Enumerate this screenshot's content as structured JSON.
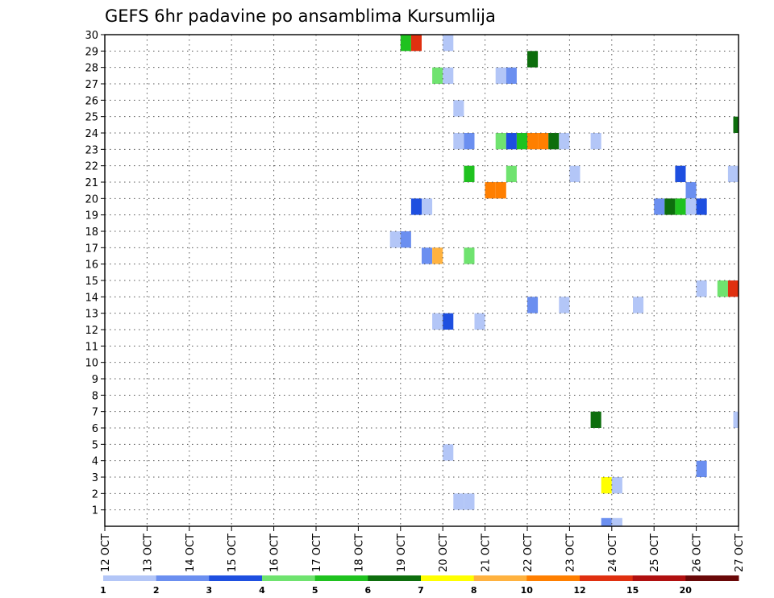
{
  "chart_data": {
    "type": "heatmap",
    "title": "GEFS 6hr padavine po ansamblima Kursumlija",
    "xlabel": "",
    "ylabel": "",
    "x_ticks": [
      "12 OCT",
      "13 OCT",
      "14 OCT",
      "15 OCT",
      "16 OCT",
      "17 OCT",
      "18 OCT",
      "19 OCT",
      "20 OCT",
      "21 OCT",
      "22 OCT",
      "23 OCT",
      "24 OCT",
      "25 OCT",
      "26 OCT",
      "27 OCT"
    ],
    "y_ticks": [
      "1",
      "2",
      "3",
      "4",
      "5",
      "6",
      "7",
      "8",
      "9",
      "10",
      "11",
      "12",
      "13",
      "14",
      "15",
      "16",
      "17",
      "18",
      "19",
      "20",
      "21",
      "22",
      "23",
      "24",
      "25",
      "26",
      "27",
      "28",
      "29",
      "30"
    ],
    "xlim": [
      0,
      60
    ],
    "ylim": [
      0,
      30
    ],
    "grid": true,
    "cell_units": "x = 6-hour step from 12 OCT 00Z, y = ensemble member (cells span y-1..y)",
    "colorbar": {
      "labels": [
        "1",
        "2",
        "3",
        "4",
        "5",
        "6",
        "7",
        "8",
        "10",
        "12",
        "15",
        "20"
      ],
      "colors": [
        "#b3c6f7",
        "#6b8ff0",
        "#1e4fe0",
        "#6fe36f",
        "#1fc21f",
        "#0d6e0d",
        "#ffff00",
        "#ffb23f",
        "#ff7f00",
        "#e03010",
        "#b01010",
        "#6a0808"
      ]
    },
    "cells": [
      {
        "x": 28.5,
        "y": 30,
        "level": 4
      },
      {
        "x": 29.5,
        "y": 30,
        "level": 9
      },
      {
        "x": 32.5,
        "y": 30,
        "level": 0
      },
      {
        "x": 40.5,
        "y": 29,
        "level": 5
      },
      {
        "x": 31.5,
        "y": 28,
        "level": 3
      },
      {
        "x": 32.5,
        "y": 28,
        "level": 0
      },
      {
        "x": 37.5,
        "y": 28,
        "level": 0
      },
      {
        "x": 38.5,
        "y": 28,
        "level": 1
      },
      {
        "x": 33.5,
        "y": 26,
        "level": 0
      },
      {
        "x": 60,
        "y": 25,
        "level": 5
      },
      {
        "x": 33.5,
        "y": 24,
        "level": 0
      },
      {
        "x": 34.5,
        "y": 24,
        "level": 1
      },
      {
        "x": 37.5,
        "y": 24,
        "level": 3
      },
      {
        "x": 38.5,
        "y": 24,
        "level": 2
      },
      {
        "x": 39.5,
        "y": 24,
        "level": 4
      },
      {
        "x": 40.5,
        "y": 24,
        "level": 8
      },
      {
        "x": 41.5,
        "y": 24,
        "level": 8
      },
      {
        "x": 42.5,
        "y": 24,
        "level": 5
      },
      {
        "x": 43.5,
        "y": 24,
        "level": 0
      },
      {
        "x": 46.5,
        "y": 24,
        "level": 0
      },
      {
        "x": 34.5,
        "y": 22,
        "level": 4
      },
      {
        "x": 38.5,
        "y": 22,
        "level": 3
      },
      {
        "x": 44.5,
        "y": 22,
        "level": 0
      },
      {
        "x": 54.5,
        "y": 22,
        "level": 2
      },
      {
        "x": 59.5,
        "y": 22,
        "level": 0
      },
      {
        "x": 55.5,
        "y": 21,
        "level": 1
      },
      {
        "x": 36.5,
        "y": 21,
        "level": 8
      },
      {
        "x": 37.5,
        "y": 21,
        "level": 8
      },
      {
        "x": 29.5,
        "y": 20,
        "level": 2
      },
      {
        "x": 30.5,
        "y": 20,
        "level": 0
      },
      {
        "x": 52.5,
        "y": 20,
        "level": 1
      },
      {
        "x": 53.5,
        "y": 20,
        "level": 5
      },
      {
        "x": 54.5,
        "y": 20,
        "level": 4
      },
      {
        "x": 55.5,
        "y": 20,
        "level": 0
      },
      {
        "x": 56.5,
        "y": 20,
        "level": 2
      },
      {
        "x": 27.5,
        "y": 18,
        "level": 0
      },
      {
        "x": 28.5,
        "y": 18,
        "level": 1
      },
      {
        "x": 30.5,
        "y": 17,
        "level": 1
      },
      {
        "x": 31.5,
        "y": 17,
        "level": 7
      },
      {
        "x": 34.5,
        "y": 17,
        "level": 3
      },
      {
        "x": 56.5,
        "y": 15,
        "level": 0
      },
      {
        "x": 58.5,
        "y": 15,
        "level": 3
      },
      {
        "x": 59.5,
        "y": 15,
        "level": 9
      },
      {
        "x": 40.5,
        "y": 14,
        "level": 1
      },
      {
        "x": 43.5,
        "y": 14,
        "level": 0
      },
      {
        "x": 50.5,
        "y": 14,
        "level": 0
      },
      {
        "x": 31.5,
        "y": 13,
        "level": 0
      },
      {
        "x": 32.5,
        "y": 13,
        "level": 2
      },
      {
        "x": 35.5,
        "y": 13,
        "level": 0
      },
      {
        "x": 46.5,
        "y": 7,
        "level": 5
      },
      {
        "x": 60,
        "y": 7,
        "level": 0
      },
      {
        "x": 32.5,
        "y": 5,
        "level": 0
      },
      {
        "x": 56.5,
        "y": 4,
        "level": 1
      },
      {
        "x": 47.5,
        "y": 3,
        "level": 6
      },
      {
        "x": 48.5,
        "y": 3,
        "level": 0
      },
      {
        "x": 33.5,
        "y": 2,
        "level": 0
      },
      {
        "x": 34.5,
        "y": 2,
        "level": 0
      },
      {
        "x": 47.5,
        "y": 0.5,
        "level": 1
      },
      {
        "x": 48.5,
        "y": 0.5,
        "level": 0
      }
    ]
  }
}
